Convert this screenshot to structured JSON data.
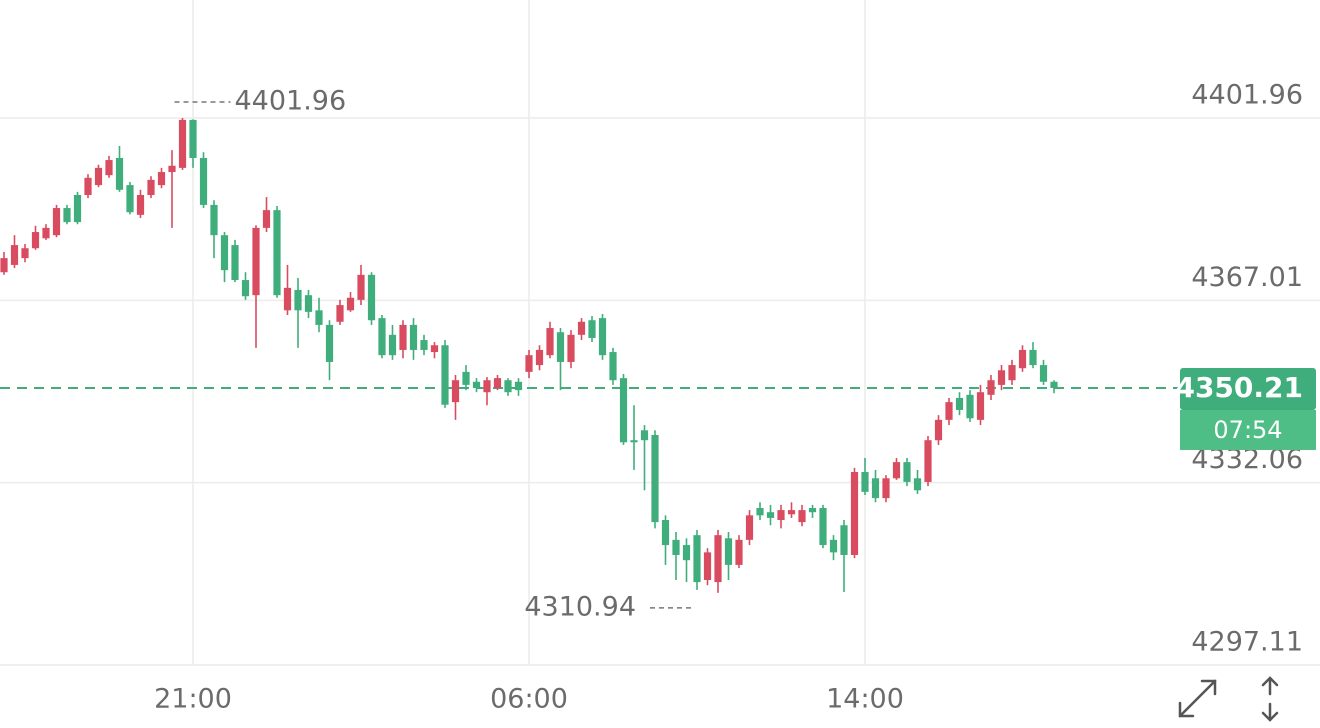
{
  "chart_data": {
    "type": "candlestick",
    "up_color": "#d94b5f",
    "down_color": "#3fae7c",
    "grid": true,
    "ylim": [
      4297.11,
      4424.58
    ],
    "yticks": [
      4401.96,
      4367.01,
      4332.06,
      4297.11
    ],
    "categories": [
      null,
      null,
      null,
      null,
      null,
      null,
      null,
      null,
      null,
      null,
      null,
      null,
      null,
      null,
      null,
      null,
      null,
      null,
      "21:00",
      null,
      null,
      null,
      null,
      null,
      null,
      null,
      null,
      null,
      null,
      null,
      null,
      null,
      null,
      null,
      null,
      null,
      null,
      null,
      null,
      null,
      null,
      null,
      null,
      null,
      null,
      null,
      null,
      null,
      null,
      null,
      "06:00",
      null,
      null,
      null,
      null,
      null,
      null,
      null,
      null,
      null,
      null,
      null,
      null,
      null,
      null,
      null,
      null,
      null,
      null,
      null,
      null,
      null,
      null,
      null,
      null,
      null,
      null,
      null,
      null,
      null,
      null,
      null,
      "14:00",
      null,
      null,
      null,
      null,
      null,
      null,
      null,
      null,
      null,
      null,
      null,
      null,
      null,
      null,
      null,
      null,
      null,
      null
    ],
    "open": [
      4372.4,
      4373.8,
      4375.1,
      4377.0,
      4378.9,
      4379.5,
      4384.7,
      4387.2,
      4387.2,
      4389.1,
      4391.0,
      4394.3,
      4389.1,
      4383.4,
      4387.2,
      4389.1,
      4391.6,
      4392.4,
      4401.6,
      4394.3,
      4385.3,
      4379.5,
      4377.6,
      4370.9,
      4368.0,
      4380.9,
      4384.3,
      4365.1,
      4369.0,
      4368.0,
      4365.1,
      4362.3,
      4362.9,
      4365.1,
      4367.1,
      4371.9,
      4363.6,
      4360.4,
      4357.5,
      4362.3,
      4359.4,
      4357.1,
      4358.4,
      4347.5,
      4353.3,
      4351.4,
      4349.4,
      4350.2,
      4351.7,
      4351.4,
      4353.3,
      4354.6,
      4356.5,
      4360.9,
      4355.2,
      4360.4,
      4363.2,
      4363.6,
      4357.1,
      4352.1,
      4340.2,
      4342.1,
      4341.2,
      4324.9,
      4321.1,
      4320.1,
      4322.0,
      4313.4,
      4313.0,
      4321.4,
      4316.3,
      4321.1,
      4327.2,
      4326.4,
      4324.9,
      4326.0,
      4324.5,
      4327.2,
      4327.2,
      4321.1,
      4323.9,
      4318.2,
      4334.1,
      4332.9,
      4329.1,
      4332.9,
      4336.0,
      4332.9,
      4332.2,
      4340.2,
      4344.1,
      4348.3,
      4348.9,
      4344.1,
      4348.9,
      4350.8,
      4351.7,
      4354.0,
      4357.5,
      4354.6,
      4351.4
    ],
    "high": [
      4376.3,
      4379.5,
      4377.8,
      4381.3,
      4381.6,
      4385.3,
      4385.3,
      4387.8,
      4391.2,
      4393.0,
      4394.7,
      4396.6,
      4389.7,
      4388.2,
      4390.8,
      4392.4,
      4395.8,
      4401.96,
      4401.7,
      4395.4,
      4386.2,
      4380.1,
      4378.6,
      4372.4,
      4381.4,
      4386.8,
      4385.1,
      4373.8,
      4371.3,
      4369.0,
      4367.5,
      4363.2,
      4367.1,
      4368.6,
      4373.8,
      4372.4,
      4364.2,
      4362.3,
      4363.2,
      4363.6,
      4360.4,
      4359.0,
      4359.4,
      4352.7,
      4354.6,
      4352.1,
      4352.3,
      4352.7,
      4352.1,
      4352.1,
      4357.5,
      4358.4,
      4362.9,
      4361.7,
      4361.3,
      4363.6,
      4364.0,
      4364.4,
      4357.9,
      4352.9,
      4346.9,
      4343.1,
      4342.1,
      4325.8,
      4322.6,
      4321.4,
      4323.0,
      4319.5,
      4323.0,
      4322.6,
      4322.0,
      4326.8,
      4328.3,
      4327.8,
      4327.8,
      4328.3,
      4327.8,
      4327.8,
      4327.8,
      4322.0,
      4324.9,
      4334.9,
      4336.8,
      4334.5,
      4333.5,
      4336.8,
      4336.8,
      4334.5,
      4341.0,
      4345.0,
      4348.3,
      4349.4,
      4349.8,
      4350.8,
      4352.7,
      4354.6,
      4355.6,
      4358.4,
      4359.0,
      4355.6,
      4351.7
    ],
    "low": [
      4371.9,
      4373.2,
      4374.3,
      4376.7,
      4378.6,
      4379.1,
      4381.6,
      4381.6,
      4386.6,
      4388.7,
      4390.5,
      4387.8,
      4383.5,
      4382.8,
      4386.6,
      4388.5,
      4380.9,
      4392.0,
      4392.4,
      4384.7,
      4375.1,
      4370.5,
      4370.5,
      4367.1,
      4357.9,
      4380.1,
      4367.5,
      4364.2,
      4357.9,
      4363.6,
      4360.9,
      4351.7,
      4362.3,
      4364.8,
      4366.1,
      4362.3,
      4355.9,
      4355.6,
      4355.9,
      4355.6,
      4356.5,
      4355.9,
      4346.4,
      4344.1,
      4349.8,
      4349.4,
      4346.9,
      4349.8,
      4348.7,
      4348.7,
      4352.1,
      4353.6,
      4355.9,
      4349.8,
      4354.0,
      4359.4,
      4359.0,
      4355.6,
      4350.8,
      4339.3,
      4334.5,
      4330.6,
      4323.3,
      4316.3,
      4313.4,
      4313.0,
      4311.5,
      4312.4,
      4310.94,
      4313.4,
      4315.7,
      4320.1,
      4324.9,
      4323.9,
      4323.3,
      4325.3,
      4323.7,
      4325.3,
      4319.5,
      4317.2,
      4311.1,
      4317.6,
      4329.7,
      4328.3,
      4328.3,
      4332.6,
      4331.4,
      4329.9,
      4331.4,
      4339.3,
      4343.1,
      4345.0,
      4343.7,
      4343.1,
      4347.9,
      4349.8,
      4350.8,
      4353.3,
      4354.0,
      4350.8,
      4349.2
    ],
    "close": [
      4375.1,
      4377.6,
      4377.0,
      4380.1,
      4380.9,
      4384.7,
      4382.0,
      4382.0,
      4390.5,
      4392.4,
      4393.9,
      4388.2,
      4383.9,
      4387.2,
      4390.1,
      4391.6,
      4392.8,
      4401.6,
      4394.3,
      4385.3,
      4379.5,
      4372.8,
      4370.9,
      4367.8,
      4380.9,
      4384.3,
      4368.0,
      4369.4,
      4365.1,
      4364.8,
      4362.3,
      4355.2,
      4366.1,
      4367.5,
      4371.9,
      4363.2,
      4356.5,
      4356.5,
      4362.3,
      4357.5,
      4357.5,
      4358.4,
      4347.0,
      4351.7,
      4350.8,
      4350.2,
      4351.7,
      4352.1,
      4349.4,
      4349.8,
      4356.5,
      4357.5,
      4361.7,
      4355.2,
      4360.4,
      4362.9,
      4359.8,
      4356.5,
      4351.7,
      4339.8,
      4339.8,
      4340.2,
      4324.5,
      4320.1,
      4318.2,
      4317.2,
      4313.0,
      4318.7,
      4322.0,
      4316.3,
      4321.1,
      4325.8,
      4325.8,
      4325.3,
      4326.8,
      4326.8,
      4326.8,
      4326.4,
      4320.1,
      4318.7,
      4318.2,
      4334.1,
      4330.3,
      4329.1,
      4332.9,
      4336.0,
      4332.2,
      4330.6,
      4340.2,
      4344.1,
      4347.5,
      4346.0,
      4344.4,
      4349.4,
      4351.7,
      4353.6,
      4354.6,
      4357.5,
      4354.6,
      4351.4,
      4350.21
    ],
    "high_label": 4401.96,
    "low_label": 4310.94,
    "last_price": 4350.21,
    "countdown": "07:54"
  }
}
